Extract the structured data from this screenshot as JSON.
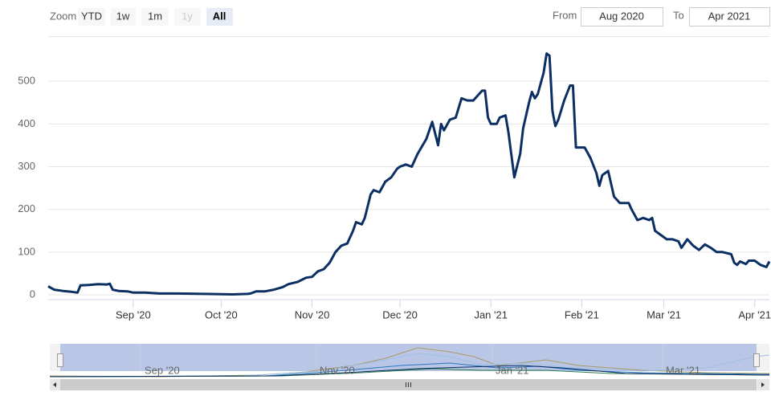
{
  "range_selector": {
    "zoom_label": "Zoom",
    "buttons": [
      "YTD",
      "1w",
      "1m",
      "1y",
      "All"
    ],
    "from_label": "From",
    "from": "Aug 2020",
    "to_label": "To",
    "to": "Apr 2021"
  },
  "navigator": {
    "labels": [
      "Sep '20",
      "Nov '20",
      "Jan '21",
      "Mar '21"
    ]
  },
  "chart_data": {
    "type": "line",
    "color": "#0b2f63",
    "grid": true,
    "xlim": [
      2,
      248
    ],
    "ylim": [
      0,
      600
    ],
    "yticks": [
      0,
      100,
      200,
      300,
      400,
      500
    ],
    "xticks": [
      {
        "value": 31,
        "label": "Sep '20"
      },
      {
        "value": 61,
        "label": "Oct '20"
      },
      {
        "value": 92,
        "label": "Nov '20"
      },
      {
        "value": 122,
        "label": "Dec '20"
      },
      {
        "value": 153,
        "label": "Jan '21"
      },
      {
        "value": 184,
        "label": "Feb '21"
      },
      {
        "value": 212,
        "label": "Mar '21"
      },
      {
        "value": 243,
        "label": "Apr '21"
      }
    ],
    "x": [
      2,
      4,
      7,
      10,
      12,
      13,
      16,
      19,
      22,
      23,
      24,
      26,
      29,
      31,
      35,
      40,
      46,
      55,
      65,
      70,
      71,
      73,
      76,
      79,
      82,
      84,
      87,
      90,
      92,
      94,
      96,
      98,
      100,
      102,
      104,
      106,
      107,
      109,
      110,
      112,
      113,
      115,
      117,
      119,
      121,
      122,
      124,
      126,
      128,
      131,
      133,
      135,
      136,
      137,
      139,
      141,
      143,
      145,
      147,
      150,
      151,
      152,
      153,
      155,
      156,
      158,
      159,
      161,
      163,
      164,
      166,
      167,
      168,
      169,
      171,
      172,
      173,
      174,
      175,
      176,
      178,
      180,
      181,
      182,
      185,
      187,
      189,
      190,
      191,
      193,
      194,
      195,
      197,
      200,
      201,
      203,
      205,
      207,
      208,
      209,
      211,
      213,
      215,
      217,
      218,
      220,
      222,
      224,
      226,
      228,
      230,
      232,
      235,
      236,
      237,
      238,
      240,
      241,
      243,
      245,
      247,
      248
    ],
    "values": [
      20,
      12,
      9,
      7,
      5,
      22,
      23,
      25,
      24,
      26,
      12,
      9,
      8,
      5,
      5,
      3,
      3,
      2,
      1,
      2,
      3,
      8,
      8,
      12,
      18,
      25,
      30,
      40,
      42,
      55,
      60,
      75,
      100,
      115,
      120,
      150,
      170,
      165,
      180,
      235,
      245,
      240,
      265,
      275,
      295,
      300,
      305,
      300,
      330,
      365,
      405,
      350,
      400,
      385,
      410,
      415,
      460,
      455,
      455,
      478,
      478,
      415,
      400,
      400,
      415,
      420,
      380,
      275,
      330,
      390,
      450,
      475,
      460,
      470,
      520,
      565,
      560,
      430,
      395,
      410,
      455,
      490,
      490,
      345,
      345,
      320,
      285,
      255,
      280,
      290,
      260,
      230,
      215,
      215,
      200,
      175,
      180,
      175,
      180,
      150,
      140,
      130,
      130,
      125,
      110,
      130,
      115,
      105,
      118,
      110,
      100,
      100,
      95,
      75,
      70,
      78,
      72,
      80,
      80,
      70,
      65,
      78
    ]
  }
}
